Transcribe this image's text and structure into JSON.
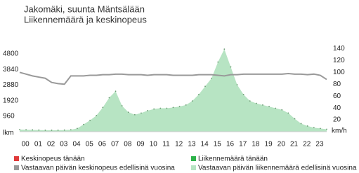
{
  "chart_data": {
    "type": "area-line",
    "title": "Jakomäki, suunta Mäntsälään",
    "subtitle": "Liikennemäärä ja keskinopeus",
    "y_unit": "lkm",
    "y2_unit": "km/h",
    "categories": [
      "00",
      "01",
      "02",
      "03",
      "04",
      "05",
      "06",
      "07",
      "08",
      "09",
      "10",
      "11",
      "12",
      "13",
      "14",
      "15",
      "16",
      "17",
      "18",
      "19",
      "20",
      "21",
      "22",
      "23"
    ],
    "x": [
      0,
      0.5,
      1,
      1.5,
      2,
      2.5,
      3,
      3.5,
      4,
      4.5,
      5,
      5.5,
      6,
      6.5,
      7,
      7.5,
      8,
      8.5,
      9,
      9.5,
      10,
      10.5,
      11,
      11.5,
      12,
      12.5,
      13,
      13.5,
      14,
      14.5,
      15,
      15.5,
      16,
      16.5,
      17,
      17.5,
      18,
      18.5,
      19,
      19.5,
      20,
      20.5,
      21,
      21.5,
      22,
      22.5,
      23,
      23.5,
      24
    ],
    "xlim": [
      0,
      24
    ],
    "ylim": [
      0,
      5280
    ],
    "yticks": [
      960,
      1920,
      2880,
      3840,
      4800
    ],
    "y2lim": [
      0,
      144
    ],
    "y2ticks": [
      20,
      40,
      60,
      80,
      100,
      120,
      140
    ],
    "series": [
      {
        "name": "Keskinopeus tänään",
        "color": "#e03a3a",
        "mark": "line",
        "axis": "y2",
        "values": [
          null,
          null,
          null,
          null,
          null,
          null,
          null,
          null,
          null,
          null,
          null,
          null,
          null,
          null,
          null,
          null,
          null,
          null,
          null,
          null,
          null,
          null,
          null,
          null,
          null,
          null,
          null,
          null,
          null,
          null,
          null,
          null,
          null,
          null,
          null,
          null,
          null,
          null,
          null,
          null,
          null,
          null,
          null,
          null,
          null,
          null,
          null,
          null,
          null
        ]
      },
      {
        "name": "Vastaavan päivän keskinopeus edellisinä vuosina",
        "color": "#999999",
        "mark": "line",
        "axis": "y2",
        "values": [
          100,
          97,
          94,
          92,
          90,
          83,
          81,
          80,
          94,
          94,
          94,
          95,
          95,
          96,
          96,
          97,
          97,
          96,
          96,
          96,
          95,
          96,
          96,
          96,
          95,
          95,
          95,
          95,
          96,
          96,
          96,
          95,
          94,
          96,
          96,
          97,
          97,
          97,
          97,
          97,
          97,
          97,
          98,
          97,
          97,
          96,
          97,
          95,
          88
        ]
      },
      {
        "name": "Liikennemäärä tänään",
        "color": "#2db34a",
        "mark": "area",
        "values": [
          null,
          null,
          null,
          null,
          null,
          null,
          null,
          null,
          null,
          null,
          null,
          null,
          null,
          null,
          null,
          null,
          null,
          null,
          null,
          null,
          null,
          null,
          null,
          null,
          null,
          null,
          null,
          null,
          null,
          null,
          null,
          null,
          null,
          null,
          null,
          null,
          null,
          null,
          null,
          null,
          null,
          null,
          null,
          null,
          null,
          null,
          null,
          null,
          null
        ]
      },
      {
        "name": "Vastaavan päivän liikennemäärä edellisinä vuosina",
        "color": "#b7e4c3",
        "mark": "area",
        "values": [
          130,
          120,
          110,
          100,
          90,
          90,
          90,
          100,
          120,
          200,
          450,
          700,
          1000,
          1500,
          2100,
          2500,
          1600,
          1200,
          1050,
          1150,
          1300,
          1400,
          1450,
          1450,
          1500,
          1550,
          1650,
          1900,
          2300,
          2800,
          3300,
          4300,
          5100,
          4000,
          2900,
          2300,
          1900,
          1750,
          1650,
          1550,
          1450,
          1350,
          1150,
          800,
          500,
          350,
          250,
          200,
          150
        ]
      }
    ],
    "y_label_color": "#2a9a2a",
    "y2_label_color": "#d02020"
  }
}
